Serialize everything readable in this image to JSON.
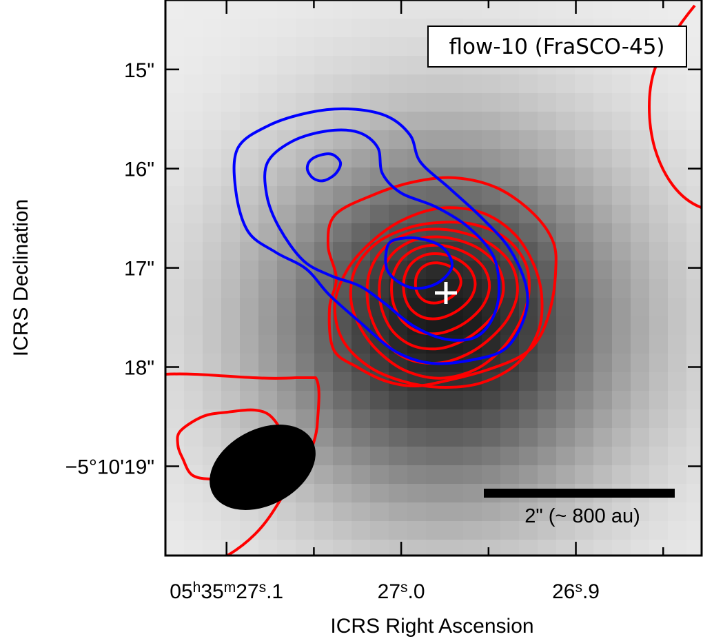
{
  "chart_data": {
    "type": "image",
    "title": "flow-10 (FraSCO-45)",
    "xlabel": "ICRS Right Ascension",
    "ylabel": "ICRS Declination",
    "x_ticks": [
      {
        "value": 27.1,
        "parts": [
          "05",
          "h",
          "35",
          "m",
          "27",
          "s",
          ".1"
        ]
      },
      {
        "value": 27.0,
        "parts": [
          "27",
          "s",
          ".0"
        ]
      },
      {
        "value": 26.9,
        "parts": [
          "26",
          "s",
          ".9"
        ]
      }
    ],
    "y_ticks": [
      {
        "value": 15,
        "label": "15\""
      },
      {
        "value": 16,
        "label": "16\""
      },
      {
        "value": 17,
        "label": "17\""
      },
      {
        "value": 18,
        "label": "18\""
      },
      {
        "value": 19,
        "label": "−5°10'19\""
      }
    ],
    "x_range_seconds": [
      27.135,
      26.828
    ],
    "y_range_arcsec": [
      14.3,
      19.9
    ],
    "background_peak": {
      "ra_s": 26.975,
      "dec_arcsec": 17.55,
      "sigma_arcsec": 1.3
    },
    "red_contours": {
      "name": "redshifted emission",
      "color": "#ff0000",
      "levels": 8,
      "peak": {
        "ra_s": 26.98,
        "dec_arcsec": 17.1
      }
    },
    "blue_contours": {
      "name": "blueshifted emission",
      "color": "#0000ff",
      "levels": 3,
      "peak": {
        "ra_s": 27.045,
        "dec_arcsec": 16.0
      }
    },
    "source_marker": {
      "symbol": "+",
      "ra_s": 26.975,
      "dec_arcsec": 17.25,
      "color": "#ffffff"
    },
    "beam": {
      "label": "beam",
      "color": "#000000"
    },
    "scale_bar": {
      "length_arcsec": 2,
      "label": "2\" (~ 800 au)"
    }
  }
}
